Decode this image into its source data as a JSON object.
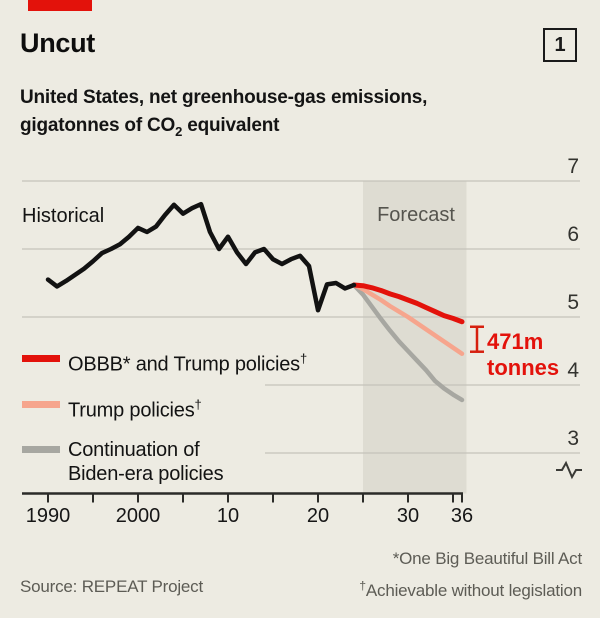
{
  "header": {
    "title": "Uncut",
    "index_badge": "1",
    "subtitle_line1": "United States, net greenhouse-gas emissions,",
    "subtitle_line2_pre": "gigatonnes of CO",
    "subtitle_line2_sub": "2",
    "subtitle_line2_post": " equivalent"
  },
  "annotations": {
    "historical": "Historical",
    "forecast": "Forecast",
    "gap_line1": "471m",
    "gap_line2": "tonnes"
  },
  "legend": {
    "items": [
      {
        "label": "OBBB* and Trump policies",
        "sup": "†",
        "label_line2": "",
        "color": "#e3120b"
      },
      {
        "label": "Trump policies",
        "sup": "†",
        "label_line2": "",
        "color": "#f6a58d"
      },
      {
        "label": "Continuation of",
        "sup": "",
        "label_line2": "Biden-era policies",
        "color": "#a7a7a1"
      }
    ]
  },
  "footer": {
    "source": "Source: REPEAT Project",
    "footnote1": "*One Big Beautiful Bill Act",
    "footnote2_sup": "†",
    "footnote2": "Achievable without legislation"
  },
  "chart_data": {
    "type": "line",
    "title": "Uncut",
    "subtitle": "United States, net greenhouse-gas emissions, gigatonnes of CO2 equivalent",
    "xlabel": "",
    "ylabel": "gigatonnes CO2e",
    "x_range": [
      1990,
      2036.5
    ],
    "ylim": [
      2.8,
      7
    ],
    "y_ticks": [
      7,
      6,
      5,
      4,
      3
    ],
    "axis_break": true,
    "grid": "horizontal",
    "legend_position": "overlay-left",
    "x_minor_ticks": [
      1990,
      1995,
      2000,
      2005,
      2010,
      2015,
      2020,
      2025,
      2030,
      2035,
      2036
    ],
    "x_tick_labels": [
      {
        "x": 1990,
        "label": "1990"
      },
      {
        "x": 2000,
        "label": "2000"
      },
      {
        "x": 2010,
        "label": "10"
      },
      {
        "x": 2020,
        "label": "20"
      },
      {
        "x": 2030,
        "label": "30"
      },
      {
        "x": 2036,
        "label": "36"
      }
    ],
    "forecast_band": {
      "start": 2025,
      "end": 2036.5,
      "label": "Forecast"
    },
    "series": [
      {
        "name": "Historical",
        "color": "#121212",
        "width": 4.5,
        "x": [
          1990,
          1991,
          1992,
          1993,
          1994,
          1995,
          1996,
          1997,
          1998,
          1999,
          2000,
          2001,
          2002,
          2003,
          2004,
          2005,
          2006,
          2007,
          2008,
          2009,
          2010,
          2011,
          2012,
          2013,
          2014,
          2015,
          2016,
          2017,
          2018,
          2019,
          2020,
          2021,
          2022,
          2023,
          2024
        ],
        "values": [
          5.55,
          5.45,
          5.53,
          5.62,
          5.71,
          5.82,
          5.94,
          6.0,
          6.07,
          6.18,
          6.31,
          6.25,
          6.33,
          6.5,
          6.65,
          6.52,
          6.6,
          6.66,
          6.25,
          6.0,
          6.18,
          5.95,
          5.78,
          5.95,
          6.0,
          5.85,
          5.78,
          5.85,
          5.9,
          5.75,
          5.1,
          5.48,
          5.5,
          5.42,
          5.47
        ]
      },
      {
        "name": "OBBB* and Trump policies",
        "color": "#e3120b",
        "width": 5,
        "x": [
          2024,
          2025,
          2026,
          2027,
          2028,
          2029,
          2030,
          2031,
          2032,
          2033,
          2034,
          2035,
          2036
        ],
        "values": [
          5.47,
          5.46,
          5.43,
          5.39,
          5.34,
          5.3,
          5.25,
          5.2,
          5.14,
          5.08,
          5.02,
          4.98,
          4.93
        ]
      },
      {
        "name": "Trump policies",
        "color": "#f6a58d",
        "width": 4.5,
        "x": [
          2024,
          2025,
          2026,
          2027,
          2028,
          2029,
          2030,
          2031,
          2032,
          2033,
          2034,
          2035,
          2036
        ],
        "values": [
          5.47,
          5.41,
          5.33,
          5.25,
          5.16,
          5.08,
          5.0,
          4.91,
          4.82,
          4.73,
          4.64,
          4.55,
          4.46
        ]
      },
      {
        "name": "Continuation of Biden-era policies",
        "color": "#a7a7a1",
        "width": 4.5,
        "x": [
          2024,
          2025,
          2026,
          2027,
          2028,
          2029,
          2030,
          2031,
          2032,
          2033,
          2034,
          2035,
          2036
        ],
        "values": [
          5.47,
          5.33,
          5.15,
          4.97,
          4.8,
          4.64,
          4.5,
          4.36,
          4.22,
          4.06,
          3.95,
          3.86,
          3.78
        ]
      }
    ],
    "annotation_gap": {
      "x": 2036,
      "from_series": "OBBB* and Trump policies",
      "to_series": "Trump policies",
      "value_from": 4.93,
      "value_to": 4.46,
      "label": "471m tonnes"
    },
    "colors": {
      "background": "#edebe2",
      "forecast_band": "#dedcd2",
      "gridline": "#c5c3ba",
      "axis": "#2b2b28",
      "accent_red": "#e3120b",
      "muted_text": "#5d5c55"
    }
  }
}
